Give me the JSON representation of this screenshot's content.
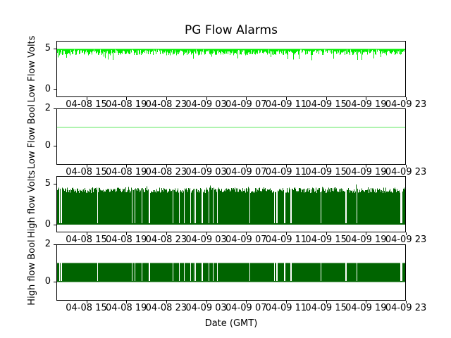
{
  "figure": {
    "title": "PG Flow Alarms",
    "background": "#ffffff"
  },
  "x_axis": {
    "label": "Date (GMT)",
    "tick_labels": [
      "04-08 15",
      "04-08 19",
      "04-08 23",
      "04-09 03",
      "04-09 07",
      "04-09 11",
      "04-09 15",
      "04-09 19",
      "04-09 23"
    ],
    "first_tick_fraction": 0.0857,
    "tick_step_fraction": 0.1143
  },
  "chart_data": [
    {
      "type": "line",
      "ylabel": "Low Flow Volts",
      "ylim": [
        -1,
        6
      ],
      "yticks": [
        0,
        5
      ],
      "color": "#00EE00",
      "signal": {
        "kind": "noisy-top",
        "base": 5,
        "dip_min": 0.08,
        "dip_max": 0.78,
        "deep_dip_prob": 0.06,
        "deep_dip_max": 1.4,
        "seed": 42
      }
    },
    {
      "type": "line",
      "ylabel": "Low Flow Bool",
      "ylim": [
        -1,
        2
      ],
      "yticks": [
        0,
        2
      ],
      "color": "#90EE90",
      "signal": {
        "kind": "constant",
        "value": 1
      }
    },
    {
      "type": "line",
      "ylabel": "High flow Volts",
      "ylim": [
        -1,
        6
      ],
      "yticks": [
        0,
        5
      ],
      "color": "#006400",
      "signal": {
        "kind": "dense-band",
        "top_base": 4.25,
        "top_jitter": 0.35,
        "spike_prob": 0.07,
        "spike_extra": 0.35,
        "bar_bottom": 0.05,
        "baseline": 0.12,
        "gap_rate": 0.05,
        "seed": 7
      }
    },
    {
      "type": "line",
      "ylabel": "High flow Bool",
      "ylim": [
        -1,
        2
      ],
      "yticks": [
        0,
        2
      ],
      "color": "#006400",
      "signal": {
        "kind": "bool-band",
        "value": 1,
        "gap_rate": 0.05,
        "seed": 7
      }
    }
  ]
}
